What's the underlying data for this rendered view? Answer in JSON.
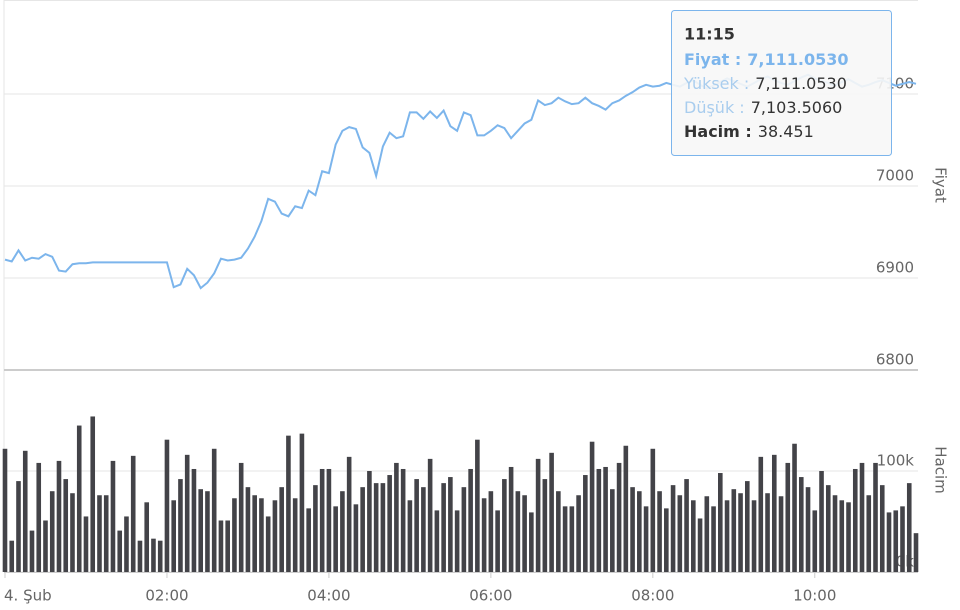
{
  "chart_data": [
    {
      "type": "line",
      "y_label": "Fiyat",
      "color": "#7cb5ec",
      "grid": true,
      "xlim": [
        0,
        675
      ],
      "ylim": [
        6800,
        7200
      ],
      "yticks": [
        6800,
        6900,
        7000,
        7100
      ],
      "x": [
        0,
        5,
        10,
        15,
        20,
        25,
        30,
        35,
        40,
        45,
        50,
        55,
        60,
        65,
        70,
        75,
        80,
        85,
        90,
        95,
        100,
        105,
        110,
        115,
        120,
        125,
        130,
        135,
        140,
        145,
        150,
        155,
        160,
        165,
        170,
        175,
        180,
        185,
        190,
        195,
        200,
        205,
        210,
        215,
        220,
        225,
        230,
        235,
        240,
        245,
        250,
        255,
        260,
        265,
        270,
        275,
        280,
        285,
        290,
        295,
        300,
        305,
        310,
        315,
        320,
        325,
        330,
        335,
        340,
        345,
        350,
        355,
        360,
        365,
        370,
        375,
        380,
        385,
        390,
        395,
        400,
        405,
        410,
        415,
        420,
        425,
        430,
        435,
        440,
        445,
        450,
        455,
        460,
        465,
        470,
        475,
        480,
        485,
        490,
        495,
        500,
        505,
        510,
        515,
        520,
        525,
        530,
        535,
        540,
        545,
        550,
        555,
        560,
        565,
        570,
        575,
        580,
        585,
        590,
        595,
        600,
        605,
        610,
        615,
        620,
        625,
        630,
        635,
        640,
        645,
        650,
        655,
        660,
        665,
        670,
        675
      ],
      "values": [
        6920,
        6918,
        6930,
        6919,
        6922,
        6921,
        6926,
        6923,
        6908,
        6907,
        6915,
        6916,
        6916,
        6917,
        6917,
        6917,
        6917,
        6917,
        6917,
        6917,
        6917,
        6917,
        6917,
        6917,
        6917,
        6890,
        6893,
        6910,
        6903,
        6889,
        6895,
        6905,
        6921,
        6919,
        6920,
        6922,
        6932,
        6945,
        6962,
        6986,
        6983,
        6970,
        6967,
        6978,
        6976,
        6995,
        6990,
        7016,
        7014,
        7045,
        7060,
        7064,
        7062,
        7042,
        7036,
        7011,
        7043,
        7058,
        7052,
        7054,
        7080,
        7080,
        7073,
        7081,
        7074,
        7082,
        7065,
        7060,
        7080,
        7077,
        7055,
        7055,
        7060,
        7066,
        7063,
        7052,
        7060,
        7068,
        7072,
        7093,
        7088,
        7090,
        7096,
        7092,
        7089,
        7090,
        7096,
        7090,
        7087,
        7083,
        7090,
        7093,
        7098,
        7102,
        7107,
        7110,
        7108,
        7109,
        7112,
        7110,
        7108,
        7112,
        7115,
        7110,
        7106,
        7109,
        7113,
        7117,
        7114,
        7111,
        7108,
        7112,
        7116,
        7119,
        7115,
        7112,
        7110,
        7114,
        7118,
        7121,
        7117,
        7114,
        7112,
        7109,
        7113,
        7116,
        7112,
        7108,
        7110,
        7113,
        7115,
        7112,
        7109,
        7111,
        7113,
        7111.053
      ],
      "tooltip": {
        "title": "11:15",
        "rows": [
          {
            "label": "Fiyat :",
            "value": "7,111.0530"
          },
          {
            "label": "Yüksek :",
            "value": "7,111.0530"
          },
          {
            "label": "Düşük :",
            "value": "7,103.5060"
          },
          {
            "label": "Hacim :",
            "value": "38.451"
          }
        ]
      }
    },
    {
      "type": "bar",
      "y_label": "Hacim",
      "color": "#434348",
      "grid": true,
      "xlim": [
        0,
        675
      ],
      "ylim": [
        0,
        200000
      ],
      "yticks": [
        {
          "value": 0,
          "label": "0k"
        },
        {
          "value": 100000,
          "label": "100k"
        }
      ],
      "xticks": [
        {
          "value": 0,
          "label": "4. Şub"
        },
        {
          "value": 120,
          "label": "02:00"
        },
        {
          "value": 240,
          "label": "04:00"
        },
        {
          "value": 360,
          "label": "06:00"
        },
        {
          "value": 480,
          "label": "08:00"
        },
        {
          "value": 600,
          "label": "10:00"
        }
      ],
      "x": [
        0,
        5,
        10,
        15,
        20,
        25,
        30,
        35,
        40,
        45,
        50,
        55,
        60,
        65,
        70,
        75,
        80,
        85,
        90,
        95,
        100,
        105,
        110,
        115,
        120,
        125,
        130,
        135,
        140,
        145,
        150,
        155,
        160,
        165,
        170,
        175,
        180,
        185,
        190,
        195,
        200,
        205,
        210,
        215,
        220,
        225,
        230,
        235,
        240,
        245,
        250,
        255,
        260,
        265,
        270,
        275,
        280,
        285,
        290,
        295,
        300,
        305,
        310,
        315,
        320,
        325,
        330,
        335,
        340,
        345,
        350,
        355,
        360,
        365,
        370,
        375,
        380,
        385,
        390,
        395,
        400,
        405,
        410,
        415,
        420,
        425,
        430,
        435,
        440,
        445,
        450,
        455,
        460,
        465,
        470,
        475,
        480,
        485,
        490,
        495,
        500,
        505,
        510,
        515,
        520,
        525,
        530,
        535,
        540,
        545,
        550,
        555,
        560,
        565,
        570,
        575,
        580,
        585,
        590,
        595,
        600,
        605,
        610,
        615,
        620,
        625,
        630,
        635,
        640,
        645,
        650,
        655,
        660,
        665,
        670,
        675
      ],
      "values": [
        122000,
        31000,
        90000,
        120000,
        41000,
        108000,
        51000,
        80000,
        110000,
        92000,
        78000,
        145000,
        55000,
        154000,
        76000,
        76000,
        110000,
        41000,
        55000,
        115000,
        31000,
        69000,
        33000,
        31000,
        131000,
        71000,
        92000,
        116000,
        102000,
        82000,
        80000,
        122000,
        51000,
        51000,
        73000,
        108000,
        84000,
        76000,
        73000,
        55000,
        71000,
        84000,
        135000,
        73000,
        137000,
        63000,
        86000,
        102000,
        102000,
        65000,
        80000,
        114000,
        67000,
        84000,
        100000,
        88000,
        88000,
        96000,
        108000,
        102000,
        71000,
        92000,
        84000,
        112000,
        61000,
        88000,
        94000,
        61000,
        84000,
        102000,
        131000,
        73000,
        80000,
        61000,
        92000,
        104000,
        80000,
        76000,
        59000,
        112000,
        92000,
        118000,
        80000,
        65000,
        65000,
        76000,
        96000,
        129000,
        102000,
        104000,
        82000,
        108000,
        125000,
        84000,
        80000,
        65000,
        122000,
        80000,
        63000,
        86000,
        76000,
        92000,
        71000,
        53000,
        75000,
        65000,
        98000,
        71000,
        82000,
        78000,
        90000,
        71000,
        114000,
        78000,
        116000,
        75000,
        108000,
        127000,
        94000,
        84000,
        61000,
        100000,
        86000,
        76000,
        71000,
        69000,
        102000,
        108000,
        76000,
        108000,
        86000,
        59000,
        61000,
        65000,
        88000,
        38451
      ]
    }
  ]
}
